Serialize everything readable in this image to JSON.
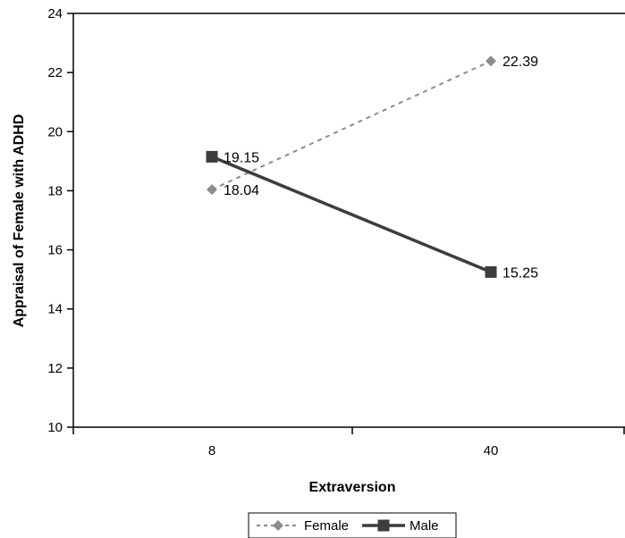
{
  "chart_data": {
    "type": "line",
    "title": "",
    "xlabel": "Extraversion",
    "ylabel": "Appraisal of Female with ADHD",
    "categories": [
      "8",
      "40"
    ],
    "ylim": [
      10,
      24
    ],
    "yticks": [
      10,
      12,
      14,
      16,
      18,
      20,
      22,
      24
    ],
    "grid": false,
    "legend_position": "bottom",
    "series": [
      {
        "name": "Female",
        "values": [
          18.04,
          22.39
        ],
        "labels": [
          "18.04",
          "22.39"
        ],
        "color": "#8c8c8c",
        "line_style": "dashed",
        "marker": "diamond"
      },
      {
        "name": "Male",
        "values": [
          19.15,
          15.25
        ],
        "labels": [
          "19.15",
          "15.25"
        ],
        "color": "#3d3d3d",
        "line_style": "solid",
        "marker": "square"
      }
    ]
  }
}
